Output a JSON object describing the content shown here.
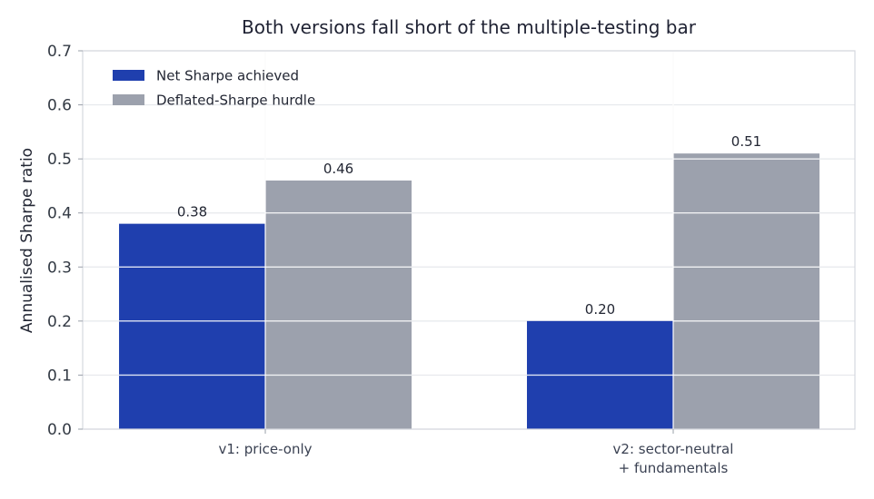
{
  "chart_data": {
    "type": "bar",
    "title": "Both versions fall short of the multiple-testing bar",
    "xlabel": "",
    "ylabel": "Annualised Sharpe ratio",
    "categories": [
      [
        "v1: price-only"
      ],
      [
        "v2: sector-neutral",
        "+ fundamentals"
      ]
    ],
    "series": [
      {
        "name": "Net Sharpe achieved",
        "values": [
          0.38,
          0.2
        ],
        "labels": [
          "0.38",
          "0.20"
        ],
        "color": "#1f3fae"
      },
      {
        "name": "Deflated-Sharpe hurdle",
        "values": [
          0.46,
          0.51
        ],
        "labels": [
          "0.46",
          "0.51"
        ],
        "color": "#9ca1ad"
      }
    ],
    "ylim": [
      0,
      0.7
    ],
    "yticks": [
      "0.0",
      "0.1",
      "0.2",
      "0.3",
      "0.4",
      "0.5",
      "0.6",
      "0.7"
    ],
    "grid": true,
    "legend_position": "top-left"
  }
}
